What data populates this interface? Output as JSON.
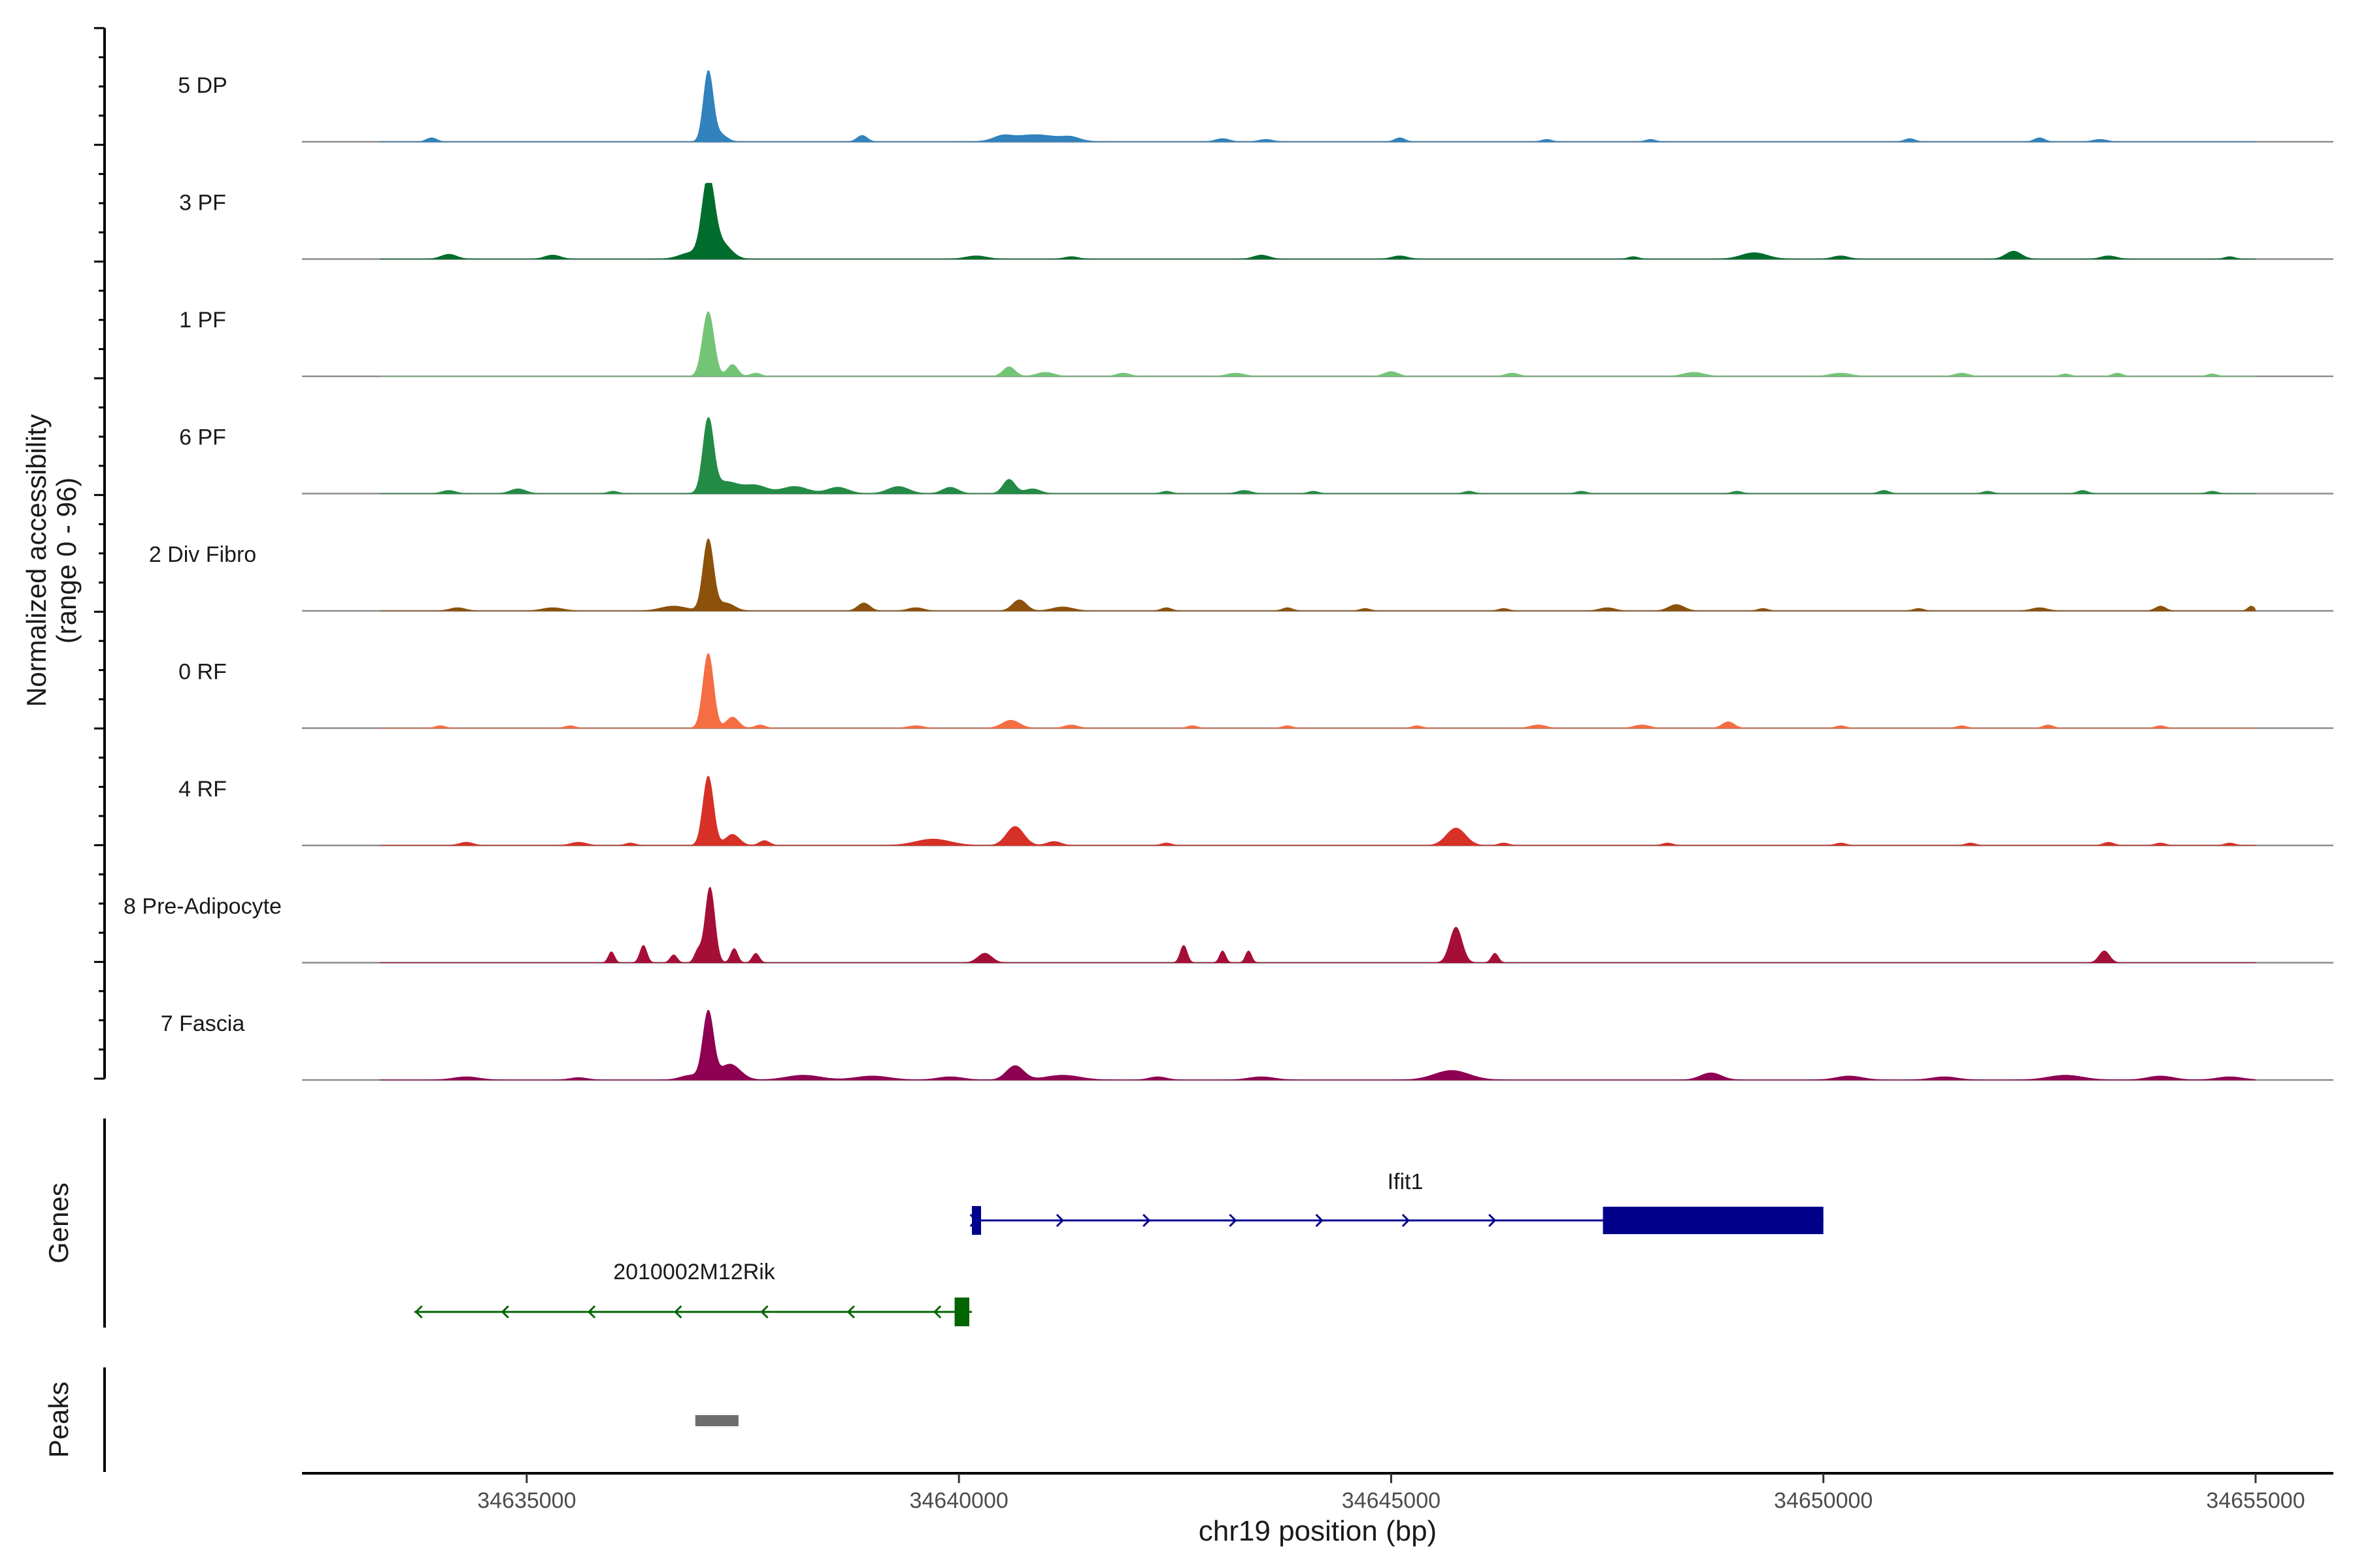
{
  "chart_data": {
    "type": "area",
    "title": "",
    "xlabel": "chr19 position (bp)",
    "ylabel": "Normalized accessibility",
    "ylabel_range": "(range 0 - 96)",
    "ylim": [
      0,
      96
    ],
    "xlim": [
      34632400,
      34655900
    ],
    "x_ticks": [
      34635000,
      34640000,
      34645000,
      34650000,
      34655000
    ],
    "x_tick_labels": [
      "34635000",
      "34640000",
      "34645000",
      "34650000",
      "34655000"
    ],
    "x_range_drawn": [
      34633300,
      34655000
    ],
    "tracks": [
      {
        "name": "5 DP",
        "color": "#3182bd",
        "peaks": [
          [
            34637100,
            88,
            55
          ],
          [
            34637230,
            10,
            80
          ],
          [
            34633900,
            5,
            60
          ],
          [
            34638880,
            8,
            60
          ],
          [
            34640880,
            9,
            280
          ],
          [
            34640500,
            5,
            100
          ],
          [
            34641300,
            4,
            100
          ],
          [
            34643050,
            4,
            80
          ],
          [
            34643550,
            3,
            80
          ],
          [
            34645100,
            5,
            60
          ],
          [
            34646800,
            3,
            60
          ],
          [
            34648000,
            3,
            60
          ],
          [
            34651000,
            4,
            60
          ],
          [
            34652500,
            5,
            60
          ],
          [
            34653200,
            3,
            80
          ]
        ]
      },
      {
        "name": "3 PF",
        "color": "#006d2c",
        "peaks": [
          [
            34637100,
            98,
            70
          ],
          [
            34637250,
            20,
            110
          ],
          [
            34636900,
            8,
            130
          ],
          [
            34634100,
            6,
            90
          ],
          [
            34635300,
            5,
            90
          ],
          [
            34640200,
            4,
            120
          ],
          [
            34641300,
            3,
            80
          ],
          [
            34643500,
            5,
            90
          ],
          [
            34645100,
            4,
            90
          ],
          [
            34647800,
            3,
            60
          ],
          [
            34649200,
            8,
            150
          ],
          [
            34650200,
            4,
            90
          ],
          [
            34652200,
            10,
            90
          ],
          [
            34653300,
            4,
            90
          ],
          [
            34654700,
            3,
            60
          ]
        ]
      },
      {
        "name": "1 PF",
        "color": "#74c476",
        "peaks": [
          [
            34637100,
            82,
            65
          ],
          [
            34637380,
            15,
            60
          ],
          [
            34637650,
            4,
            60
          ],
          [
            34640580,
            12,
            70
          ],
          [
            34641000,
            5,
            100
          ],
          [
            34641900,
            4,
            80
          ],
          [
            34643200,
            4,
            100
          ],
          [
            34645000,
            6,
            80
          ],
          [
            34646400,
            4,
            80
          ],
          [
            34648500,
            5,
            120
          ],
          [
            34650200,
            4,
            120
          ],
          [
            34651600,
            4,
            80
          ],
          [
            34652800,
            3,
            60
          ],
          [
            34653400,
            4,
            60
          ],
          [
            34654500,
            3,
            60
          ]
        ]
      },
      {
        "name": "6 PF",
        "color": "#238b45",
        "peaks": [
          [
            34637100,
            92,
            60
          ],
          [
            34637300,
            15,
            150
          ],
          [
            34637650,
            10,
            130
          ],
          [
            34638100,
            9,
            150
          ],
          [
            34638600,
            8,
            120
          ],
          [
            34639300,
            9,
            120
          ],
          [
            34639900,
            8,
            90
          ],
          [
            34640580,
            18,
            70
          ],
          [
            34640850,
            6,
            90
          ],
          [
            34634900,
            6,
            90
          ],
          [
            34634100,
            4,
            80
          ],
          [
            34636000,
            3,
            60
          ],
          [
            34642400,
            3,
            60
          ],
          [
            34643300,
            4,
            80
          ],
          [
            34644100,
            3,
            60
          ],
          [
            34645900,
            3,
            60
          ],
          [
            34647200,
            3,
            60
          ],
          [
            34649000,
            3,
            60
          ],
          [
            34650700,
            4,
            60
          ],
          [
            34651900,
            3,
            60
          ],
          [
            34653000,
            4,
            60
          ],
          [
            34654500,
            3,
            60
          ]
        ]
      },
      {
        "name": "2 Div Fibro",
        "color": "#8c510a",
        "peaks": [
          [
            34637100,
            90,
            60
          ],
          [
            34637300,
            10,
            100
          ],
          [
            34636700,
            6,
            150
          ],
          [
            34634200,
            4,
            90
          ],
          [
            34635300,
            4,
            120
          ],
          [
            34638900,
            10,
            70
          ],
          [
            34639500,
            4,
            90
          ],
          [
            34640700,
            14,
            80
          ],
          [
            34641200,
            5,
            120
          ],
          [
            34642400,
            4,
            60
          ],
          [
            34643800,
            4,
            60
          ],
          [
            34644700,
            3,
            60
          ],
          [
            34646300,
            3,
            60
          ],
          [
            34647500,
            4,
            90
          ],
          [
            34648300,
            8,
            90
          ],
          [
            34649300,
            3,
            60
          ],
          [
            34651100,
            3,
            60
          ],
          [
            34652500,
            4,
            90
          ],
          [
            34653900,
            6,
            60
          ],
          [
            34654950,
            6,
            40
          ]
        ]
      },
      {
        "name": "0 RF",
        "color": "#f46d43",
        "peaks": [
          [
            34637100,
            95,
            60
          ],
          [
            34637380,
            14,
            70
          ],
          [
            34637700,
            4,
            60
          ],
          [
            34634000,
            3,
            60
          ],
          [
            34635500,
            3,
            60
          ],
          [
            34639500,
            3,
            90
          ],
          [
            34640600,
            10,
            100
          ],
          [
            34641300,
            4,
            80
          ],
          [
            34642700,
            3,
            60
          ],
          [
            34643800,
            3,
            60
          ],
          [
            34645300,
            3,
            60
          ],
          [
            34646700,
            4,
            90
          ],
          [
            34647900,
            4,
            90
          ],
          [
            34648900,
            8,
            70
          ],
          [
            34650200,
            3,
            60
          ],
          [
            34651600,
            3,
            60
          ],
          [
            34652600,
            4,
            60
          ],
          [
            34653900,
            3,
            60
          ]
        ]
      },
      {
        "name": "4 RF",
        "color": "#d73027",
        "peaks": [
          [
            34637100,
            88,
            60
          ],
          [
            34637380,
            14,
            80
          ],
          [
            34637750,
            6,
            60
          ],
          [
            34634300,
            4,
            80
          ],
          [
            34635600,
            4,
            90
          ],
          [
            34636200,
            3,
            60
          ],
          [
            34639700,
            8,
            200
          ],
          [
            34640650,
            24,
            100
          ],
          [
            34641100,
            5,
            80
          ],
          [
            34642400,
            3,
            60
          ],
          [
            34645750,
            22,
            110
          ],
          [
            34646300,
            3,
            60
          ],
          [
            34648200,
            3,
            60
          ],
          [
            34650200,
            3,
            60
          ],
          [
            34651700,
            3,
            60
          ],
          [
            34653300,
            4,
            60
          ],
          [
            34653900,
            3,
            60
          ],
          [
            34654700,
            3,
            60
          ]
        ]
      },
      {
        "name": "8 Pre-Adipocyte",
        "color": "#a50f37",
        "peaks": [
          [
            34637120,
            96,
            55
          ],
          [
            34636980,
            15,
            40
          ],
          [
            34637400,
            18,
            40
          ],
          [
            34635980,
            14,
            35
          ],
          [
            34636350,
            22,
            40
          ],
          [
            34636700,
            10,
            40
          ],
          [
            34637650,
            12,
            40
          ],
          [
            34640300,
            12,
            80
          ],
          [
            34642600,
            22,
            40
          ],
          [
            34643050,
            15,
            35
          ],
          [
            34643350,
            15,
            35
          ],
          [
            34645750,
            45,
            70
          ],
          [
            34646200,
            12,
            40
          ],
          [
            34653250,
            15,
            60
          ]
        ]
      },
      {
        "name": "7 Fascia",
        "color": "#8e0152",
        "peaks": [
          [
            34637100,
            85,
            60
          ],
          [
            34637350,
            20,
            120
          ],
          [
            34636900,
            6,
            120
          ],
          [
            34634300,
            4,
            150
          ],
          [
            34635600,
            3,
            100
          ],
          [
            34638200,
            6,
            200
          ],
          [
            34639000,
            5,
            200
          ],
          [
            34639900,
            4,
            150
          ],
          [
            34640650,
            18,
            100
          ],
          [
            34641200,
            6,
            200
          ],
          [
            34642300,
            4,
            100
          ],
          [
            34643500,
            4,
            150
          ],
          [
            34645700,
            12,
            200
          ],
          [
            34648700,
            9,
            120
          ],
          [
            34650300,
            5,
            150
          ],
          [
            34651400,
            4,
            150
          ],
          [
            34652800,
            6,
            200
          ],
          [
            34653900,
            5,
            150
          ],
          [
            34654700,
            4,
            150
          ]
        ]
      }
    ],
    "genes_panel_label": "Genes",
    "genes": [
      {
        "name": "Ifit1",
        "strand": "+",
        "color": "#00008b",
        "start": 34640150,
        "end": 34650000,
        "exons": [
          [
            34640150,
            34640250
          ],
          [
            34647450,
            34650000
          ]
        ]
      },
      {
        "name": "2010002M12Rik",
        "strand": "-",
        "color": "#006400",
        "start": 34633700,
        "end": 34640150,
        "exons": [
          [
            34639950,
            34640120
          ]
        ]
      }
    ],
    "peaks_panel_label": "Peaks",
    "peak_regions": [
      {
        "start": 34636950,
        "end": 34637450,
        "color": "#6e6e6e"
      }
    ]
  }
}
